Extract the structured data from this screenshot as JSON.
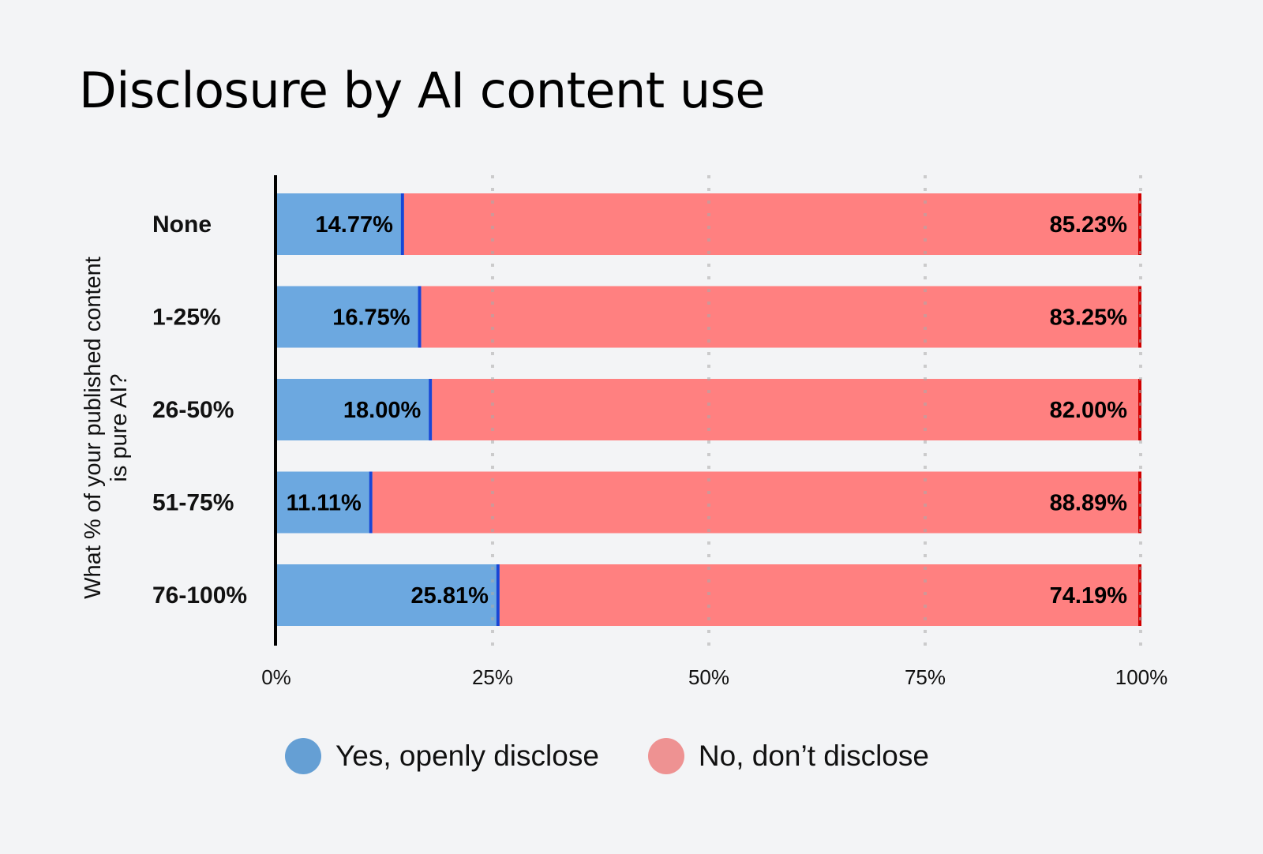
{
  "chart_data": {
    "type": "bar",
    "orientation": "horizontal",
    "stacked": true,
    "title": "Disclosure by AI content use",
    "xlabel": "",
    "ylabel": "What % of your published content is pure AI?",
    "ylabel_lines": [
      "What % of your published content",
      "is pure AI?"
    ],
    "categories": [
      "None",
      "1-25%",
      "26-50%",
      "51-75%",
      "76-100%"
    ],
    "series": [
      {
        "name": "Yes, openly disclose",
        "color": "#6ca8e0",
        "edge_color": "#1846d6",
        "values": [
          14.77,
          16.75,
          18.0,
          11.11,
          25.81
        ],
        "labels": [
          "14.77%",
          "16.75%",
          "18.00%",
          "11.11%",
          "25.81%"
        ]
      },
      {
        "name": "No, don’t disclose",
        "color": "#ff8080",
        "edge_color": "#d10000",
        "values": [
          85.23,
          83.25,
          82.0,
          88.89,
          74.19
        ],
        "labels": [
          "85.23%",
          "83.25%",
          "82.00%",
          "88.89%",
          "74.19%"
        ]
      }
    ],
    "xlim": [
      0,
      100
    ],
    "xticks": [
      0,
      25,
      50,
      75,
      100
    ],
    "xtick_labels": [
      "0%",
      "25%",
      "50%",
      "75%",
      "100%"
    ],
    "grid": "vertical dotted",
    "legend": {
      "position": "bottom",
      "items": [
        {
          "label": "Yes, openly disclose",
          "color": "#659fd4"
        },
        {
          "label": "No, don’t disclose",
          "color": "#ee9292"
        }
      ]
    }
  }
}
